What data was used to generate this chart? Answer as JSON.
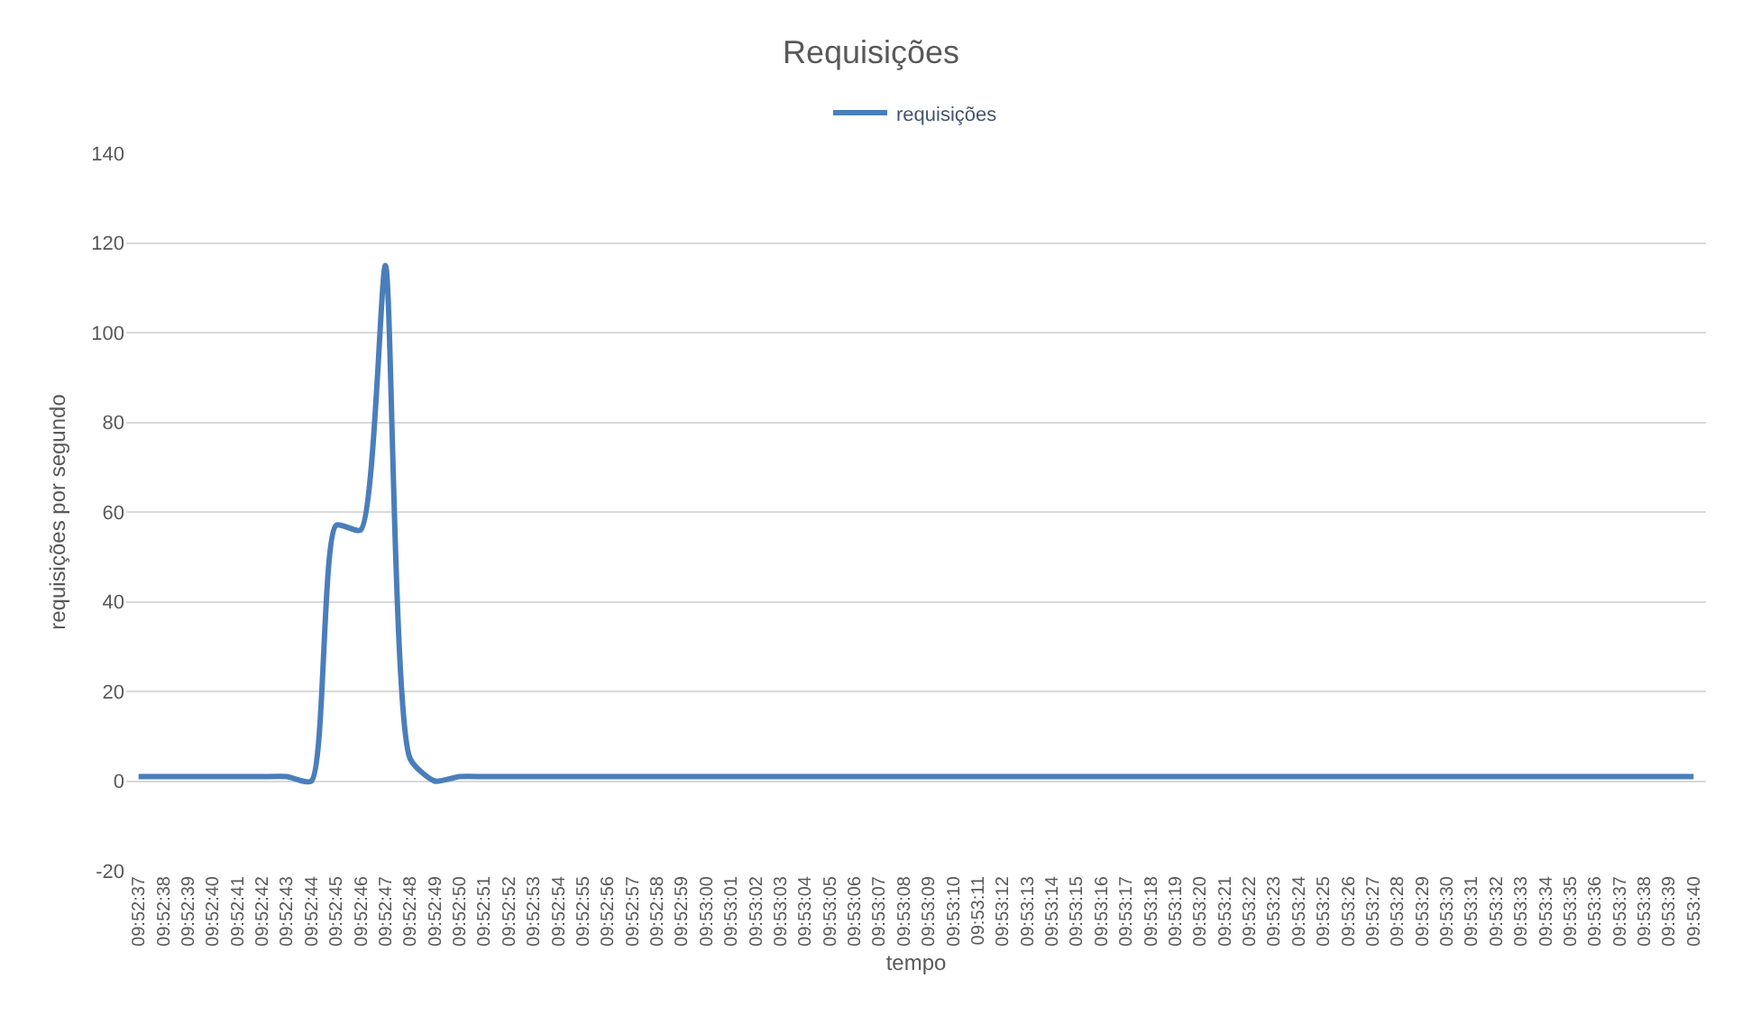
{
  "chart_data": {
    "type": "line",
    "title": "Requisições",
    "xlabel": "tempo",
    "ylabel": "requisições por segundo",
    "categories": [
      "09:52:37",
      "09:52:38",
      "09:52:39",
      "09:52:40",
      "09:52:41",
      "09:52:42",
      "09:52:43",
      "09:52:44",
      "09:52:45",
      "09:52:46",
      "09:52:47",
      "09:52:48",
      "09:52:49",
      "09:52:50",
      "09:52:51",
      "09:52:52",
      "09:52:53",
      "09:52:54",
      "09:52:55",
      "09:52:56",
      "09:52:57",
      "09:52:58",
      "09:52:59",
      "09:53:00",
      "09:53:01",
      "09:53:02",
      "09:53:03",
      "09:53:04",
      "09:53:05",
      "09:53:06",
      "09:53:07",
      "09:53:08",
      "09:53:09",
      "09:53:10",
      "09:53:11",
      "09:53:12",
      "09:53:13",
      "09:53:14",
      "09:53:15",
      "09:53:16",
      "09:53:17",
      "09:53:18",
      "09:53:19",
      "09:53:20",
      "09:53:21",
      "09:53:22",
      "09:53:23",
      "09:53:24",
      "09:53:25",
      "09:53:26",
      "09:53:27",
      "09:53:28",
      "09:53:29",
      "09:53:30",
      "09:53:31",
      "09:53:32",
      "09:53:33",
      "09:53:34",
      "09:53:35",
      "09:53:36",
      "09:53:37",
      "09:53:38",
      "09:53:39",
      "09:53:40"
    ],
    "series": [
      {
        "name": "requisições",
        "color": "#4a7ebb",
        "values": [
          1,
          1,
          1,
          1,
          1,
          1,
          1,
          0,
          57,
          56,
          115,
          5,
          0,
          1,
          1,
          1,
          1,
          1,
          1,
          1,
          1,
          1,
          1,
          1,
          1,
          1,
          1,
          1,
          1,
          1,
          1,
          1,
          1,
          1,
          1,
          1,
          1,
          1,
          1,
          1,
          1,
          1,
          1,
          1,
          1,
          1,
          1,
          1,
          1,
          1,
          1,
          1,
          1,
          1,
          1,
          1,
          1,
          1,
          1,
          1,
          1,
          1,
          1,
          1
        ]
      }
    ],
    "ylim": [
      -20,
      140
    ],
    "yticks": [
      -20,
      0,
      20,
      40,
      60,
      80,
      100,
      120,
      140
    ],
    "grid": "y",
    "legend": "top",
    "marker": "none",
    "line_style": "solid"
  }
}
